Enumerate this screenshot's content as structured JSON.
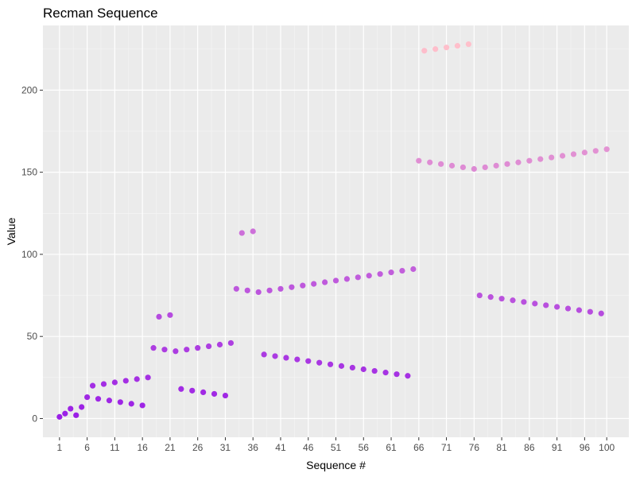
{
  "chart_data": {
    "type": "scatter",
    "title": "Recman Sequence",
    "xlabel": "Sequence #",
    "ylabel": "Value",
    "xlim": [
      -2,
      104
    ],
    "ylim": [
      -11.4,
      239.4
    ],
    "x_ticks": [
      1,
      6,
      11,
      16,
      21,
      26,
      31,
      36,
      41,
      46,
      51,
      56,
      61,
      66,
      71,
      76,
      81,
      86,
      91,
      96,
      100
    ],
    "x_tick_labels": [
      "1",
      "6",
      "11",
      "16",
      "21",
      "26",
      "31",
      "36",
      "41",
      "46",
      "51",
      "56",
      "61",
      "66",
      "71",
      "76",
      "81",
      "86",
      "91",
      "96",
      "100"
    ],
    "y_ticks": [
      0,
      50,
      100,
      150,
      200
    ],
    "y_tick_labels": [
      "0",
      "50",
      "100",
      "150",
      "200"
    ],
    "grid": true,
    "legend": "none",
    "color_scale": {
      "low": "#9a1fe6",
      "high": "#ffc0cb",
      "min": 0,
      "max": 228
    },
    "x": [
      1,
      2,
      3,
      4,
      5,
      6,
      7,
      8,
      9,
      10,
      11,
      12,
      13,
      14,
      15,
      16,
      17,
      18,
      19,
      20,
      21,
      22,
      23,
      24,
      25,
      26,
      27,
      28,
      29,
      30,
      31,
      32,
      33,
      34,
      35,
      36,
      37,
      38,
      39,
      40,
      41,
      42,
      43,
      44,
      45,
      46,
      47,
      48,
      49,
      50,
      51,
      52,
      53,
      54,
      55,
      56,
      57,
      58,
      59,
      60,
      61,
      62,
      63,
      64,
      65,
      66,
      67,
      68,
      69,
      70,
      71,
      72,
      73,
      74,
      75,
      76,
      77,
      78,
      79,
      80,
      81,
      82,
      83,
      84,
      85,
      86,
      87,
      88,
      89,
      90,
      91,
      92,
      93,
      94,
      95,
      96,
      97,
      98,
      99,
      100
    ],
    "y": [
      1,
      3,
      6,
      2,
      7,
      13,
      20,
      12,
      21,
      11,
      22,
      10,
      23,
      9,
      24,
      8,
      25,
      43,
      62,
      42,
      63,
      41,
      18,
      42,
      17,
      43,
      16,
      44,
      15,
      45,
      14,
      46,
      79,
      113,
      78,
      114,
      77,
      39,
      78,
      38,
      79,
      37,
      80,
      36,
      81,
      35,
      82,
      34,
      83,
      33,
      84,
      32,
      85,
      31,
      86,
      30,
      87,
      29,
      88,
      28,
      89,
      27,
      90,
      26,
      91,
      157,
      224,
      156,
      225,
      155,
      226,
      154,
      227,
      153,
      228,
      152,
      75,
      153,
      74,
      154,
      73,
      155,
      72,
      156,
      71,
      157,
      70,
      158,
      69,
      159,
      68,
      160,
      67,
      161,
      66,
      162,
      65,
      163,
      64,
      164
    ]
  }
}
